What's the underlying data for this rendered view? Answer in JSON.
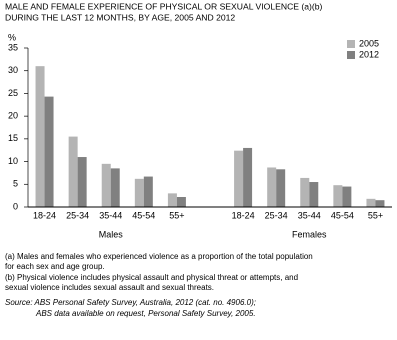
{
  "chart_data": {
    "type": "bar",
    "title": [
      "MALE AND FEMALE EXPERIENCE OF PHYSICAL OR SEXUAL VIOLENCE (a)(b)",
      "DURING THE LAST 12 MONTHS, BY AGE, 2005 AND 2012"
    ],
    "y_label": "%",
    "group_labels": [
      "Males",
      "Females"
    ],
    "categories": [
      "18-24",
      "25-34",
      "35-44",
      "45-54",
      "55+",
      "18-24",
      "25-34",
      "35-44",
      "45-54",
      "55+"
    ],
    "series": [
      {
        "name": "2005",
        "color": "#b4b4b4",
        "values": [
          31,
          15.5,
          9.5,
          6.2,
          3,
          12.4,
          8.7,
          6.4,
          4.8,
          1.8
        ]
      },
      {
        "name": "2012",
        "color": "#808080",
        "values": [
          24.3,
          11,
          8.5,
          6.7,
          2.2,
          13,
          8.3,
          5.5,
          4.5,
          1.5
        ]
      }
    ],
    "ylim": [
      0,
      35
    ],
    "yticks": [
      0,
      5,
      10,
      15,
      20,
      25,
      30,
      35
    ],
    "grid": false,
    "legend": "top-right",
    "notes": [
      "(a) Males and females who experienced violence as a proportion of the total population",
      "for each sex and age group.",
      "(b) Physical violence includes physical assault and physical threat or attempts, and",
      "sexual violence includes sexual assault and sexual threats."
    ],
    "source": [
      "Source: ABS Personal Safety Survey, Australia, 2012 (cat. no. 4906.0);",
      "ABS data available on request, Personal Safety Survey, 2005."
    ]
  }
}
